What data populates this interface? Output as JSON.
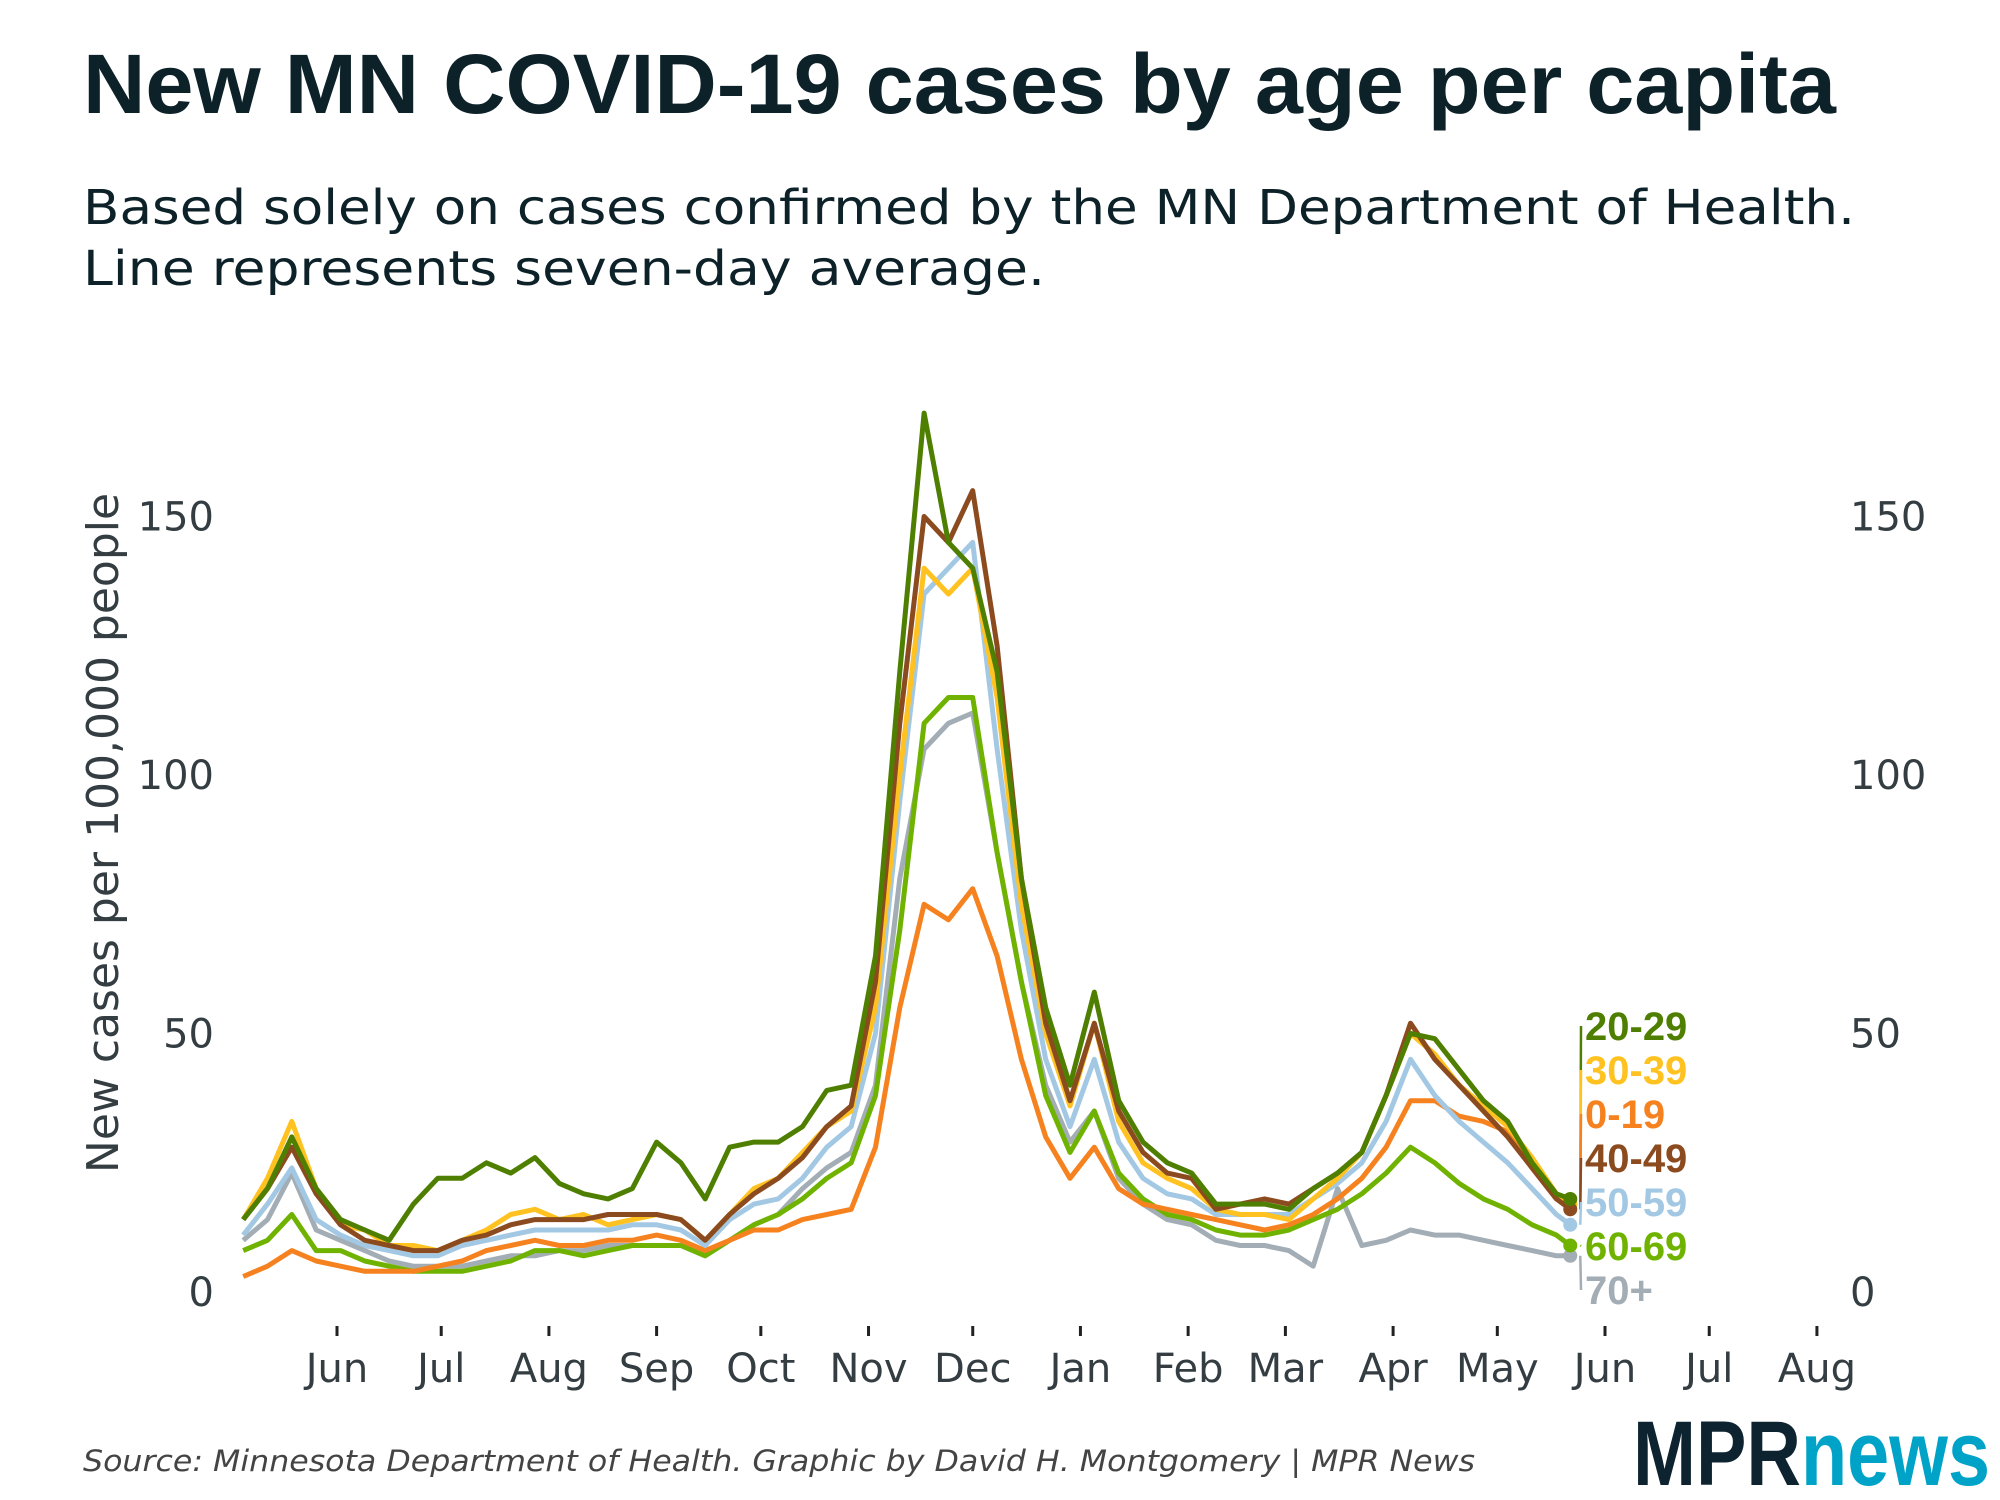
{
  "title": "New MN COVID-19 cases by age per capita",
  "subtitle": [
    "Based solely on cases confirmed by the MN Department of Health.",
    "Line represents seven-day average."
  ],
  "source": "Source: Minnesota Department of Health. Graphic by David H. Montgomery | MPR News",
  "logo": {
    "part1": "MPR",
    "part2": "news",
    "color1": "#0d2330",
    "color2": "#00a3c8"
  },
  "chart_data": {
    "type": "line",
    "title": "New MN COVID-19 cases by age per capita",
    "ylabel": "New cases per 100,000 people",
    "xlabel": "",
    "ylim": [
      0,
      180
    ],
    "xlim": [
      "2020-05-01",
      "2021-08-15"
    ],
    "yticks": [
      0,
      50,
      100,
      150
    ],
    "y_axis_both_sides": true,
    "grid": false,
    "legend": "direct labels at line ends (right)",
    "xticks": [
      {
        "date": "2020-06-01",
        "label": "Jun"
      },
      {
        "date": "2020-07-01",
        "label": "Jul"
      },
      {
        "date": "2020-08-01",
        "label": "Aug"
      },
      {
        "date": "2020-09-01",
        "label": "Sep"
      },
      {
        "date": "2020-10-01",
        "label": "Oct"
      },
      {
        "date": "2020-11-01",
        "label": "Nov"
      },
      {
        "date": "2020-12-01",
        "label": "Dec"
      },
      {
        "date": "2021-01-01",
        "label": "Jan"
      },
      {
        "date": "2021-02-01",
        "label": "Feb"
      },
      {
        "date": "2021-03-01",
        "label": "Mar"
      },
      {
        "date": "2021-04-01",
        "label": "Apr"
      },
      {
        "date": "2021-05-01",
        "label": "May"
      },
      {
        "date": "2021-06-01",
        "label": "Jun"
      },
      {
        "date": "2021-07-01",
        "label": "Jul"
      },
      {
        "date": "2021-08-01",
        "label": "Aug"
      }
    ],
    "x": [
      "2020-05-05",
      "2020-05-12",
      "2020-05-19",
      "2020-05-26",
      "2020-06-02",
      "2020-06-09",
      "2020-06-16",
      "2020-06-23",
      "2020-06-30",
      "2020-07-07",
      "2020-07-14",
      "2020-07-21",
      "2020-07-28",
      "2020-08-04",
      "2020-08-11",
      "2020-08-18",
      "2020-08-25",
      "2020-09-01",
      "2020-09-08",
      "2020-09-15",
      "2020-09-22",
      "2020-09-29",
      "2020-10-06",
      "2020-10-13",
      "2020-10-20",
      "2020-10-27",
      "2020-11-03",
      "2020-11-10",
      "2020-11-17",
      "2020-11-24",
      "2020-12-01",
      "2020-12-08",
      "2020-12-15",
      "2020-12-22",
      "2020-12-29",
      "2021-01-05",
      "2021-01-12",
      "2021-01-19",
      "2021-01-26",
      "2021-02-02",
      "2021-02-09",
      "2021-02-16",
      "2021-02-23",
      "2021-03-02",
      "2021-03-09",
      "2021-03-16",
      "2021-03-23",
      "2021-03-30",
      "2021-04-06",
      "2021-04-13",
      "2021-04-20",
      "2021-04-27",
      "2021-05-04",
      "2021-05-11",
      "2021-05-18",
      "2021-05-22"
    ],
    "series": [
      {
        "name": "70+",
        "color": "#a3adb5",
        "values": [
          10,
          14,
          23,
          12,
          10,
          8,
          6,
          5,
          5,
          5,
          6,
          7,
          7,
          8,
          8,
          9,
          9,
          9,
          9,
          7,
          10,
          13,
          15,
          20,
          24,
          27,
          40,
          80,
          105,
          110,
          112,
          85,
          60,
          40,
          29,
          35,
          22,
          17,
          14,
          13,
          10,
          9,
          9,
          8,
          5,
          20,
          9,
          10,
          12,
          11,
          11,
          10,
          9,
          8,
          7,
          7
        ]
      },
      {
        "name": "60-69",
        "color": "#6fb300",
        "values": [
          8,
          10,
          15,
          8,
          8,
          6,
          5,
          4,
          4,
          4,
          5,
          6,
          8,
          8,
          7,
          8,
          9,
          9,
          9,
          7,
          10,
          13,
          15,
          18,
          22,
          25,
          38,
          70,
          110,
          115,
          115,
          85,
          60,
          38,
          27,
          35,
          23,
          18,
          15,
          14,
          12,
          11,
          11,
          12,
          14,
          16,
          19,
          23,
          28,
          25,
          21,
          18,
          16,
          13,
          11,
          9
        ]
      },
      {
        "name": "0-19",
        "color": "#f5821f",
        "values": [
          3,
          5,
          8,
          6,
          5,
          4,
          4,
          4,
          5,
          6,
          8,
          9,
          10,
          9,
          9,
          10,
          10,
          11,
          10,
          8,
          10,
          12,
          12,
          14,
          15,
          16,
          28,
          55,
          75,
          72,
          78,
          65,
          45,
          30,
          22,
          28,
          20,
          17,
          16,
          15,
          14,
          13,
          12,
          13,
          15,
          18,
          22,
          28,
          37,
          37,
          34,
          33,
          31,
          24,
          18,
          17
        ]
      },
      {
        "name": "50-59",
        "color": "#a3c8e3",
        "values": [
          11,
          17,
          24,
          14,
          11,
          9,
          8,
          7,
          7,
          9,
          10,
          11,
          12,
          12,
          12,
          12,
          13,
          13,
          12,
          9,
          14,
          17,
          18,
          22,
          28,
          32,
          50,
          95,
          135,
          140,
          145,
          105,
          70,
          45,
          32,
          45,
          29,
          22,
          19,
          18,
          15,
          15,
          15,
          15,
          18,
          21,
          25,
          33,
          45,
          38,
          33,
          29,
          25,
          20,
          15,
          13
        ]
      },
      {
        "name": "30-39",
        "color": "#ffc220",
        "values": [
          14,
          22,
          33,
          20,
          13,
          12,
          9,
          9,
          8,
          10,
          12,
          15,
          16,
          14,
          15,
          13,
          14,
          15,
          14,
          10,
          15,
          20,
          22,
          27,
          32,
          35,
          55,
          100,
          140,
          135,
          140,
          115,
          75,
          50,
          36,
          52,
          33,
          25,
          22,
          20,
          16,
          15,
          15,
          14,
          18,
          22,
          27,
          38,
          50,
          46,
          40,
          36,
          32,
          26,
          19,
          17
        ]
      },
      {
        "name": "40-49",
        "color": "#8b4b1f",
        "values": [
          14,
          20,
          28,
          19,
          13,
          10,
          9,
          8,
          8,
          10,
          11,
          13,
          14,
          14,
          14,
          15,
          15,
          15,
          14,
          10,
          15,
          19,
          22,
          26,
          32,
          36,
          60,
          110,
          150,
          145,
          155,
          125,
          80,
          52,
          37,
          52,
          35,
          27,
          23,
          22,
          16,
          17,
          18,
          17,
          20,
          23,
          27,
          38,
          52,
          45,
          40,
          35,
          30,
          24,
          18,
          16
        ]
      },
      {
        "name": "20-29",
        "color": "#4f7f00",
        "values": [
          14,
          20,
          30,
          20,
          14,
          12,
          10,
          17,
          22,
          22,
          25,
          23,
          26,
          21,
          19,
          18,
          20,
          29,
          25,
          18,
          28,
          29,
          29,
          32,
          39,
          40,
          65,
          120,
          170,
          145,
          140,
          120,
          80,
          55,
          40,
          58,
          37,
          29,
          25,
          23,
          17,
          17,
          17,
          16,
          20,
          23,
          27,
          38,
          50,
          49,
          43,
          37,
          33,
          25,
          19,
          18
        ]
      }
    ]
  }
}
